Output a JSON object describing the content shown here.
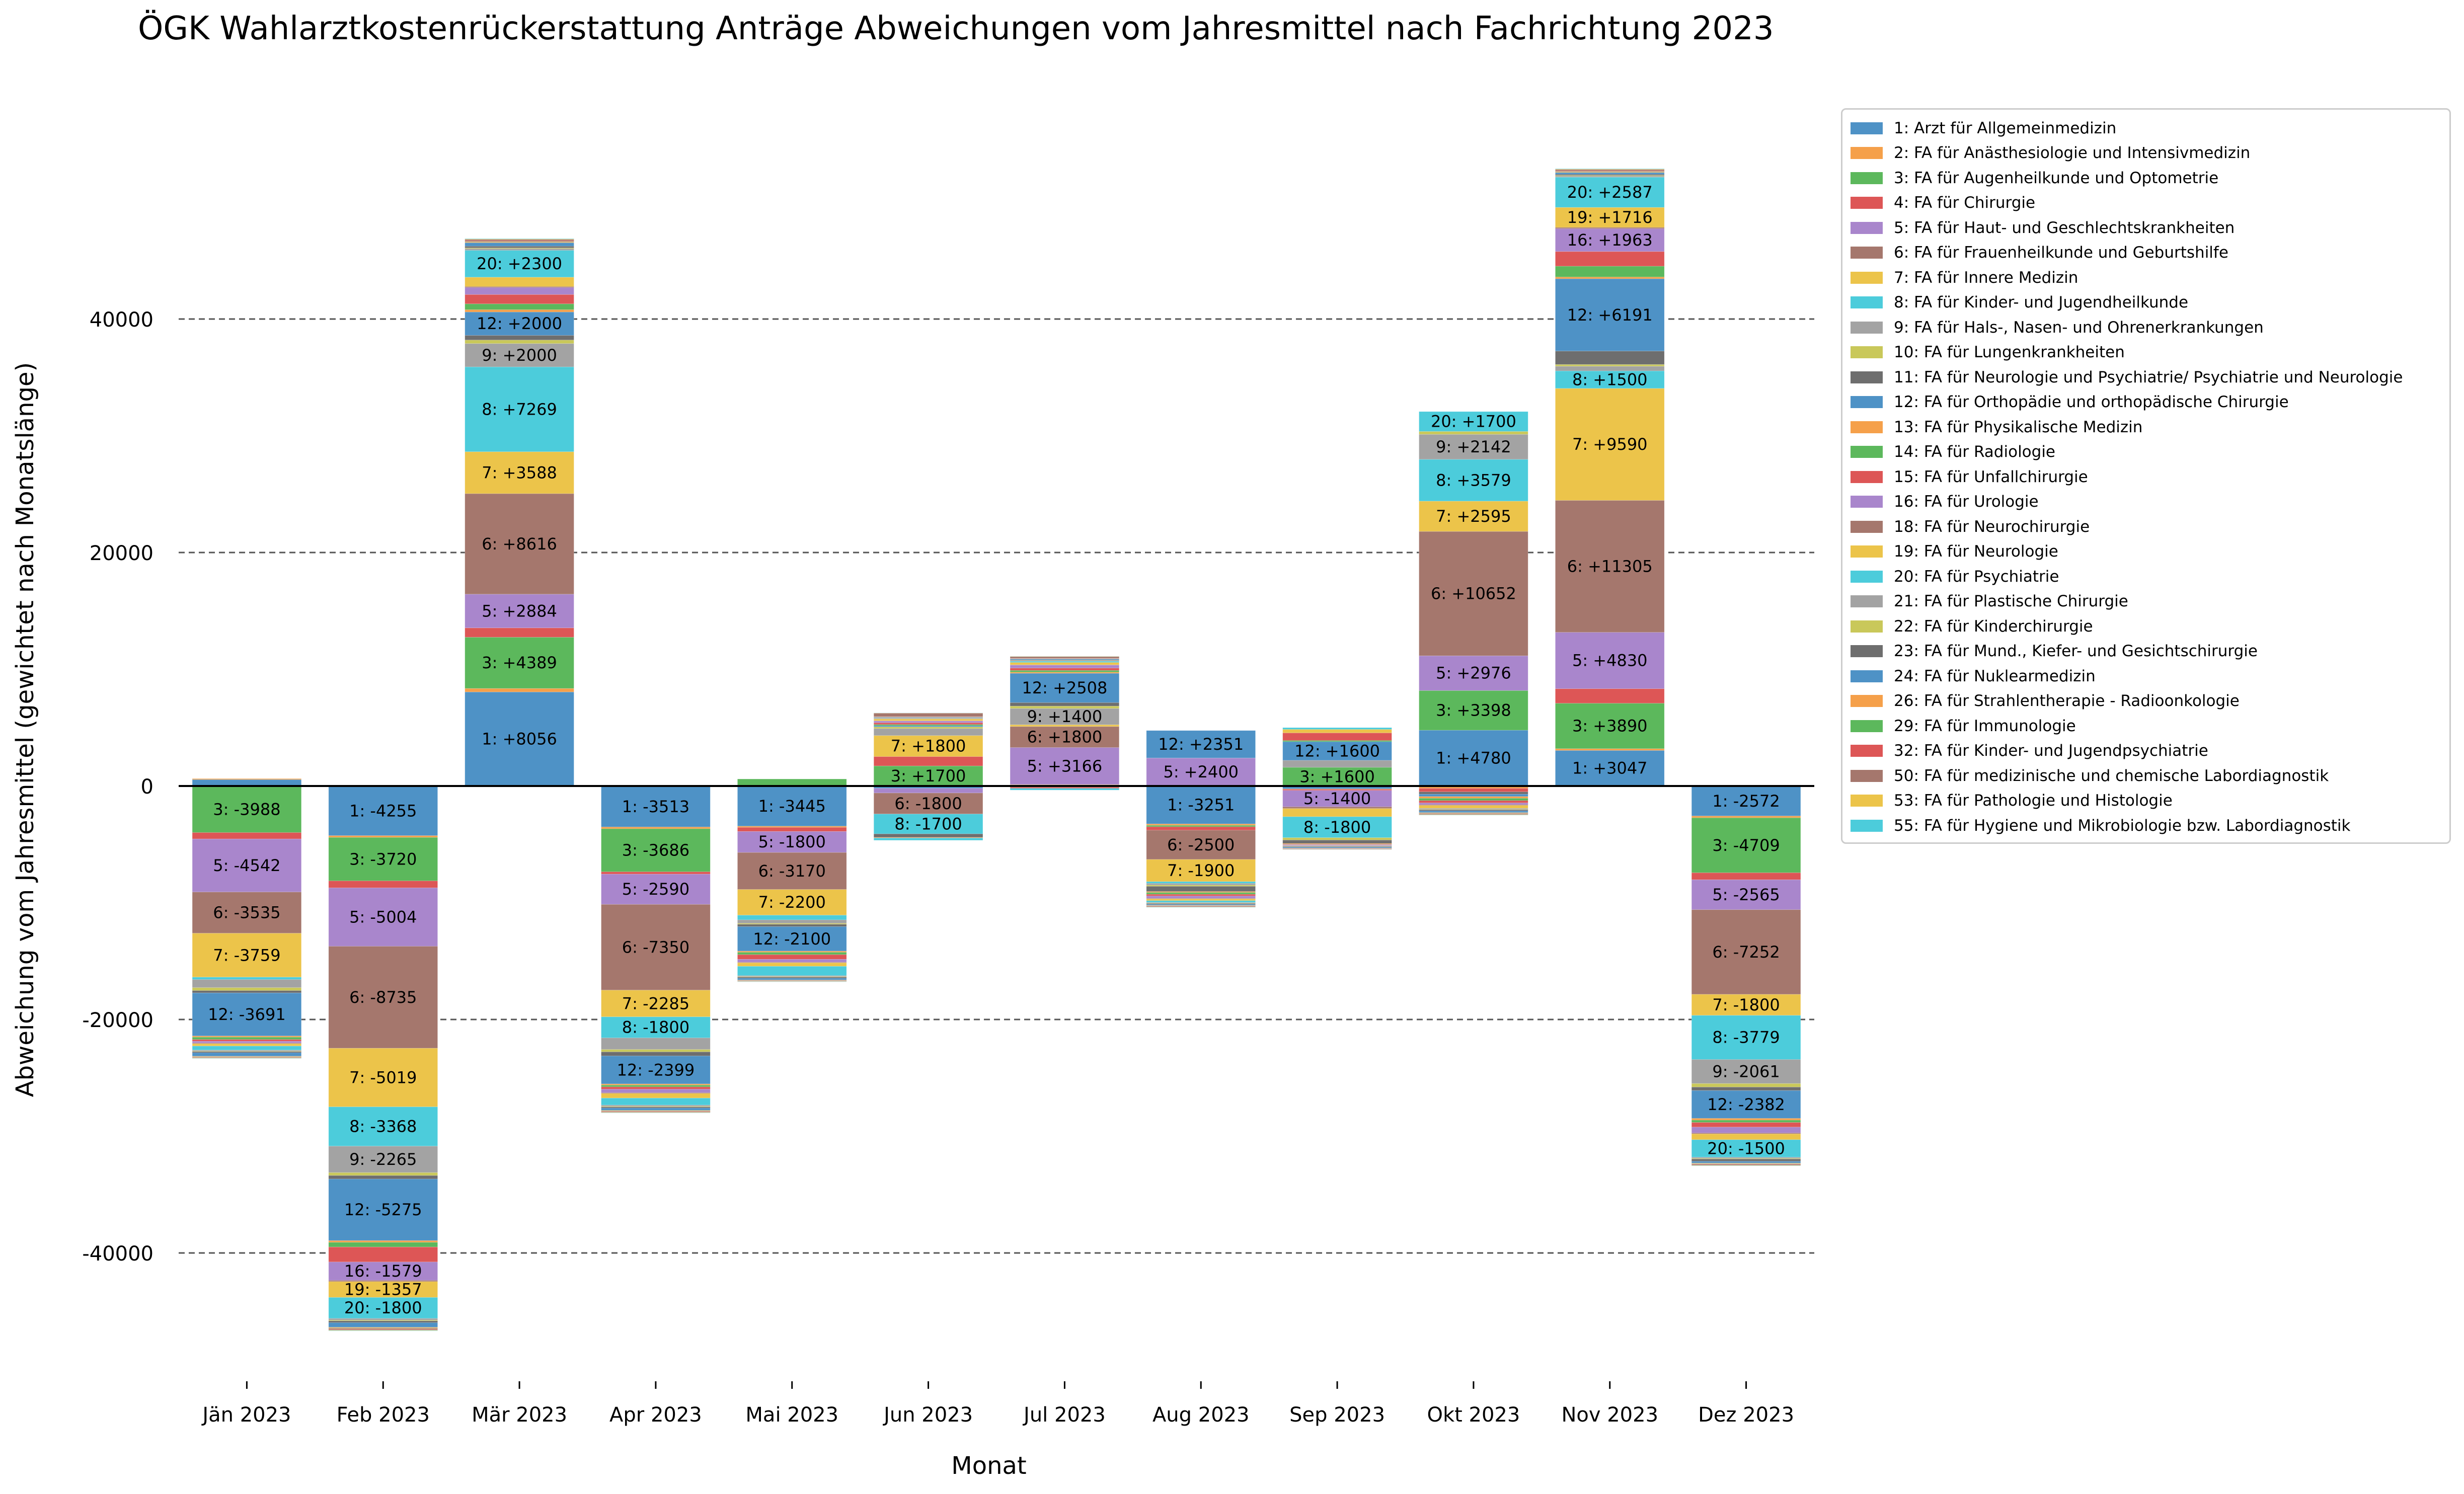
{
  "chart_data": {
    "type": "bar",
    "stacked": "diverging",
    "title": "ÖGK Wahlarztkostenrückerstattung Anträge Abweichungen vom Jahresmittel nach Fachrichtung 2023",
    "xlabel": "Monat",
    "ylabel": "Abweichung vom Jahresmittel (gewichtet nach Monatslänge)",
    "ylim": [
      -50000,
      56000
    ],
    "yticks": [
      -40000,
      -20000,
      0,
      20000,
      40000
    ],
    "grid": "horizontal-dashed",
    "legend_position": "upper-right-outside",
    "categories": [
      "Jän 2023",
      "Feb 2023",
      "Mär 2023",
      "Apr 2023",
      "Mai 2023",
      "Jun 2023",
      "Jul 2023",
      "Aug 2023",
      "Sep 2023",
      "Okt 2023",
      "Nov 2023",
      "Dez 2023"
    ],
    "series": [
      {
        "name": "1: Arzt für Allgemeinmedizin",
        "color": "#4e92c6",
        "values": [
          550,
          -4255,
          8056,
          -3513,
          -3445,
          -200,
          100,
          -3251,
          -250,
          4780,
          3047,
          -2572
        ]
      },
      {
        "name": "2: FA für Anästhesiologie und Intensivmedizin",
        "color": "#f5a04a",
        "values": [
          80,
          -150,
          300,
          -150,
          -100,
          20,
          30,
          -120,
          -30,
          -200,
          150,
          -150
        ]
      },
      {
        "name": "3: FA für Augenheilkunde und Optometrie",
        "color": "#5cb85c",
        "values": [
          -3988,
          -3720,
          4389,
          -3686,
          600,
          1700,
          -100,
          -120,
          1600,
          3398,
          3890,
          -4709
        ]
      },
      {
        "name": "4: FA für Chirurgie",
        "color": "#dd5656",
        "values": [
          -550,
          -600,
          800,
          -200,
          -350,
          800,
          -100,
          -300,
          -100,
          -300,
          1246,
          -600
        ]
      },
      {
        "name": "5: FA für Haut- und Geschlechtskrankheiten",
        "color": "#a986cc",
        "values": [
          -4542,
          -5004,
          2884,
          -2590,
          -1800,
          -400,
          3166,
          2400,
          -1400,
          2976,
          4830,
          -2565
        ]
      },
      {
        "name": "6: FA für Frauenheilkunde und Geburtshilfe",
        "color": "#a5776d",
        "values": [
          -3535,
          -8735,
          8616,
          -7350,
          -3170,
          -1800,
          1800,
          -2500,
          -150,
          10652,
          11305,
          -7252
        ]
      },
      {
        "name": "7: FA für Innere Medizin",
        "color": "#ecc44a",
        "values": [
          -3759,
          -5019,
          3588,
          -2285,
          -2200,
          1800,
          150,
          -1900,
          -700,
          2595,
          9590,
          -1800
        ]
      },
      {
        "name": "8: FA für Kinder- und Jugendheilkunde",
        "color": "#4cccdb",
        "values": [
          -200,
          -3368,
          7269,
          -1800,
          -400,
          -1700,
          -150,
          -150,
          -1800,
          3579,
          1500,
          -3779
        ]
      },
      {
        "name": "9: FA für Hals-, Nasen- und Ohrenerkrankungen",
        "color": "#a3a3a3",
        "values": [
          -700,
          -2265,
          2000,
          -1000,
          -300,
          600,
          1400,
          -150,
          600,
          2142,
          400,
          -2061
        ]
      },
      {
        "name": "10: FA für Lungenkrankheiten",
        "color": "#c9c85a",
        "values": [
          -250,
          -250,
          300,
          -200,
          -80,
          150,
          200,
          -100,
          -200,
          250,
          150,
          -300
        ]
      },
      {
        "name": "11: FA für Neurologie und Psychiatrie/ Psychiatrie und Neurologie",
        "color": "#6e6e6e",
        "values": [
          -200,
          -300,
          400,
          -350,
          -200,
          -300,
          300,
          -450,
          -300,
          -200,
          1150,
          -300
        ]
      },
      {
        "name": "12: FA für Orthopädie und orthopädische Chirurgie",
        "color": "#4e92c6",
        "values": [
          -3691,
          -5275,
          2000,
          -2399,
          -2100,
          100,
          2508,
          2351,
          1600,
          -200,
          6191,
          -2382
        ]
      },
      {
        "name": "13: FA für Physikalische Medizin",
        "color": "#f5a04a",
        "values": [
          -100,
          -150,
          200,
          -100,
          -100,
          -50,
          100,
          -80,
          -80,
          -150,
          150,
          -150
        ]
      },
      {
        "name": "14: FA für Radiologie",
        "color": "#5cb85c",
        "values": [
          -200,
          -400,
          500,
          -150,
          -200,
          100,
          150,
          -150,
          100,
          -200,
          928,
          -200
        ]
      },
      {
        "name": "15: FA für Unfallchirurgie",
        "color": "#dd5656",
        "values": [
          -150,
          -1281,
          800,
          -200,
          -400,
          150,
          200,
          -150,
          650,
          -200,
          1257,
          -400
        ]
      },
      {
        "name": "16: FA für Urologie",
        "color": "#a986cc",
        "values": [
          -150,
          -1579,
          600,
          -300,
          -250,
          150,
          250,
          -200,
          -80,
          -150,
          1963,
          -500
        ]
      },
      {
        "name": "18: FA für Neurochirurgie",
        "color": "#a5776d",
        "values": [
          -60,
          -100,
          80,
          -60,
          -50,
          20,
          30,
          -50,
          -30,
          -60,
          100,
          -80
        ]
      },
      {
        "name": "19: FA für Neurologie",
        "color": "#ecc44a",
        "values": [
          -200,
          -1357,
          800,
          -400,
          -300,
          150,
          200,
          -150,
          300,
          -250,
          1716,
          -500
        ]
      },
      {
        "name": "20: FA für Psychiatrie",
        "color": "#4cccdb",
        "values": [
          -350,
          -1800,
          2300,
          -600,
          -800,
          -200,
          100,
          -150,
          150,
          1700,
          2587,
          -1500
        ]
      },
      {
        "name": "21: FA für Plastische Chirurgie",
        "color": "#a3a3a3",
        "values": [
          -80,
          -150,
          150,
          -100,
          -80,
          40,
          50,
          -60,
          -40,
          -80,
          100,
          -100
        ]
      },
      {
        "name": "22: FA für Kinderchirurgie",
        "color": "#c9c85a",
        "values": [
          -40,
          -60,
          60,
          -50,
          -40,
          20,
          20,
          -30,
          -20,
          -40,
          50,
          -50
        ]
      },
      {
        "name": "23: FA für Mund., Kiefer- und Gesichtschirurgie",
        "color": "#6e6e6e",
        "values": [
          -100,
          -150,
          150,
          -100,
          -100,
          40,
          50,
          -80,
          -60,
          -100,
          100,
          -200
        ]
      },
      {
        "name": "24: FA für Nuklearmedizin",
        "color": "#4e92c6",
        "values": [
          -300,
          -400,
          300,
          -200,
          -150,
          50,
          80,
          -80,
          -80,
          -150,
          150,
          -150
        ]
      },
      {
        "name": "26: FA für Strahlentherapie - Radioonkologie",
        "color": "#f5a04a",
        "values": [
          -40,
          -60,
          60,
          -40,
          -30,
          20,
          20,
          -30,
          -20,
          -40,
          50,
          -40
        ]
      },
      {
        "name": "29: FA für Immunologie",
        "color": "#5cb85c",
        "values": [
          -30,
          -40,
          40,
          -30,
          -20,
          10,
          10,
          -20,
          -10,
          -30,
          40,
          -30
        ]
      },
      {
        "name": "32: FA für Kinder- und Jugendpsychiatrie",
        "color": "#dd5656",
        "values": [
          -30,
          -60,
          60,
          -40,
          -30,
          20,
          20,
          -30,
          -20,
          -40,
          50,
          -40
        ]
      },
      {
        "name": "50: FA für medizinische und chemische Labordiagnostik",
        "color": "#a5776d",
        "values": [
          -50,
          -80,
          120,
          -60,
          -40,
          300,
          150,
          -60,
          -50,
          -60,
          120,
          -80
        ]
      },
      {
        "name": "53: FA für Pathologie und Histologie",
        "color": "#ecc44a",
        "values": [
          -30,
          -40,
          40,
          -30,
          -20,
          10,
          20,
          -20,
          -10,
          -30,
          40,
          -30
        ]
      },
      {
        "name": "55: FA für Hygiene und Mikrobiologie bzw. Labordiagnostik",
        "color": "#4cccdb",
        "values": [
          -20,
          -30,
          30,
          -20,
          -20,
          10,
          10,
          -20,
          -10,
          -20,
          30,
          -20
        ]
      }
    ]
  }
}
